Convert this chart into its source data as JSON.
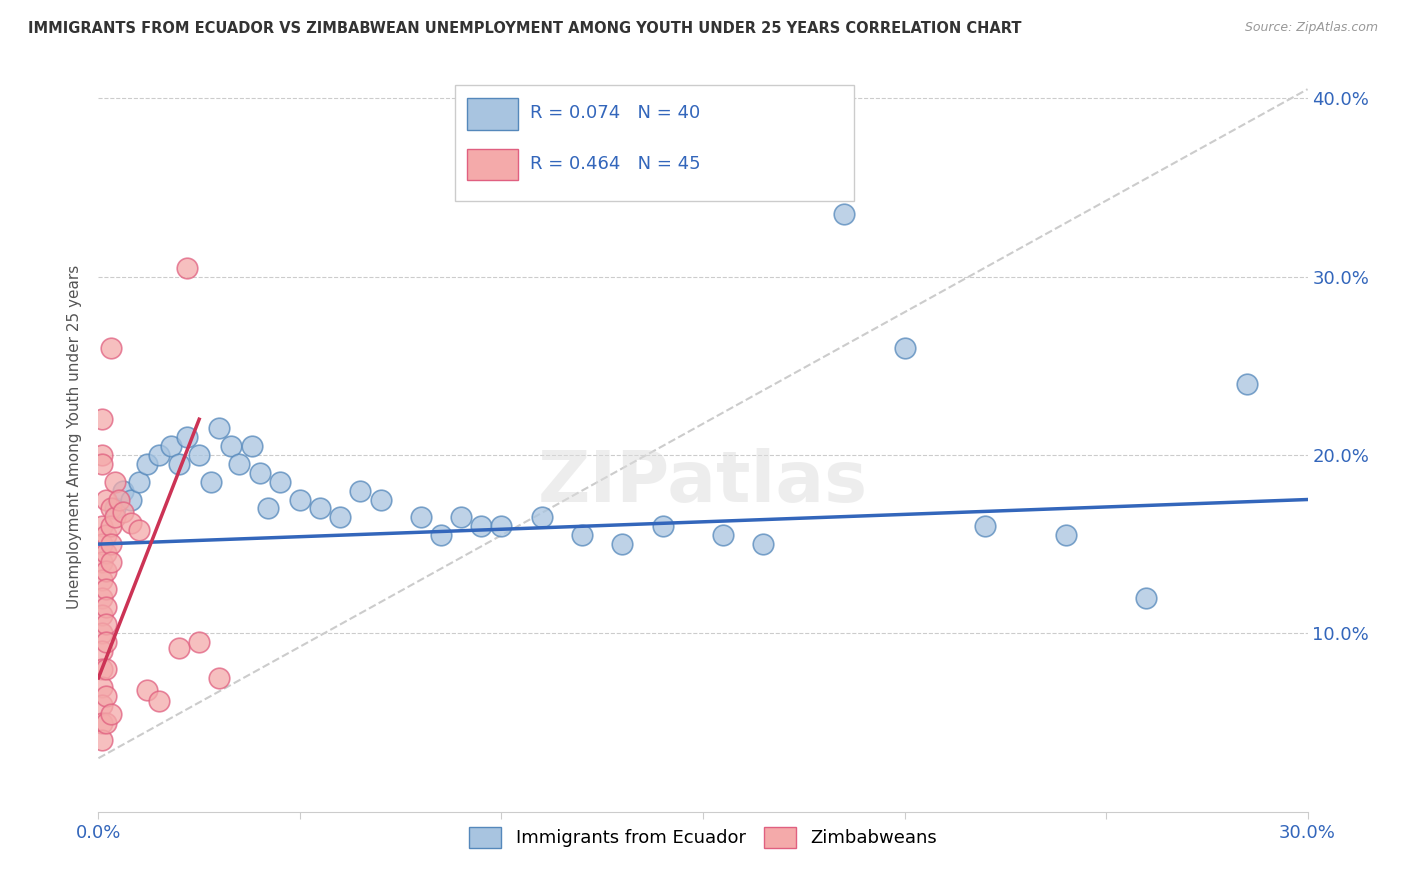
{
  "title": "IMMIGRANTS FROM ECUADOR VS ZIMBABWEAN UNEMPLOYMENT AMONG YOUTH UNDER 25 YEARS CORRELATION CHART",
  "source": "Source: ZipAtlas.com",
  "ylabel": "Unemployment Among Youth under 25 years",
  "xlim": [
    0.0,
    0.3
  ],
  "ylim": [
    0.0,
    0.42
  ],
  "legend1_r": "R = 0.074",
  "legend1_n": "N = 40",
  "legend2_r": "R = 0.464",
  "legend2_n": "N = 45",
  "blue_fill": "#A8C4E0",
  "blue_edge": "#5588BB",
  "pink_fill": "#F4AAAA",
  "pink_edge": "#E06080",
  "blue_line": "#3366BB",
  "pink_line": "#CC3355",
  "dash_line": "#CCCCCC",
  "ecuador_points": [
    [
      0.004,
      0.17
    ],
    [
      0.006,
      0.18
    ],
    [
      0.008,
      0.175
    ],
    [
      0.01,
      0.185
    ],
    [
      0.012,
      0.195
    ],
    [
      0.015,
      0.2
    ],
    [
      0.018,
      0.205
    ],
    [
      0.02,
      0.195
    ],
    [
      0.022,
      0.21
    ],
    [
      0.025,
      0.2
    ],
    [
      0.028,
      0.185
    ],
    [
      0.03,
      0.215
    ],
    [
      0.033,
      0.205
    ],
    [
      0.035,
      0.195
    ],
    [
      0.038,
      0.205
    ],
    [
      0.04,
      0.19
    ],
    [
      0.042,
      0.17
    ],
    [
      0.045,
      0.185
    ],
    [
      0.05,
      0.175
    ],
    [
      0.055,
      0.17
    ],
    [
      0.06,
      0.165
    ],
    [
      0.065,
      0.18
    ],
    [
      0.07,
      0.175
    ],
    [
      0.08,
      0.165
    ],
    [
      0.085,
      0.155
    ],
    [
      0.09,
      0.165
    ],
    [
      0.095,
      0.16
    ],
    [
      0.1,
      0.16
    ],
    [
      0.11,
      0.165
    ],
    [
      0.12,
      0.155
    ],
    [
      0.13,
      0.15
    ],
    [
      0.14,
      0.16
    ],
    [
      0.155,
      0.155
    ],
    [
      0.165,
      0.15
    ],
    [
      0.185,
      0.335
    ],
    [
      0.2,
      0.26
    ],
    [
      0.22,
      0.16
    ],
    [
      0.24,
      0.155
    ],
    [
      0.26,
      0.12
    ],
    [
      0.285,
      0.24
    ]
  ],
  "zimbabwe_points": [
    [
      0.001,
      0.22
    ],
    [
      0.001,
      0.2
    ],
    [
      0.001,
      0.195
    ],
    [
      0.001,
      0.16
    ],
    [
      0.001,
      0.15
    ],
    [
      0.001,
      0.14
    ],
    [
      0.001,
      0.13
    ],
    [
      0.001,
      0.12
    ],
    [
      0.001,
      0.11
    ],
    [
      0.001,
      0.1
    ],
    [
      0.001,
      0.09
    ],
    [
      0.001,
      0.08
    ],
    [
      0.001,
      0.07
    ],
    [
      0.001,
      0.06
    ],
    [
      0.001,
      0.05
    ],
    [
      0.001,
      0.04
    ],
    [
      0.002,
      0.175
    ],
    [
      0.002,
      0.155
    ],
    [
      0.002,
      0.145
    ],
    [
      0.002,
      0.135
    ],
    [
      0.002,
      0.125
    ],
    [
      0.002,
      0.115
    ],
    [
      0.002,
      0.105
    ],
    [
      0.002,
      0.095
    ],
    [
      0.002,
      0.08
    ],
    [
      0.002,
      0.065
    ],
    [
      0.002,
      0.05
    ],
    [
      0.003,
      0.26
    ],
    [
      0.003,
      0.17
    ],
    [
      0.003,
      0.16
    ],
    [
      0.003,
      0.15
    ],
    [
      0.003,
      0.14
    ],
    [
      0.003,
      0.055
    ],
    [
      0.004,
      0.185
    ],
    [
      0.004,
      0.165
    ],
    [
      0.005,
      0.175
    ],
    [
      0.006,
      0.168
    ],
    [
      0.008,
      0.162
    ],
    [
      0.01,
      0.158
    ],
    [
      0.012,
      0.068
    ],
    [
      0.015,
      0.062
    ],
    [
      0.02,
      0.092
    ],
    [
      0.022,
      0.305
    ],
    [
      0.025,
      0.095
    ],
    [
      0.03,
      0.075
    ]
  ],
  "blue_trend": [
    0.0,
    0.3,
    0.15,
    0.175
  ],
  "pink_trend": [
    0.0,
    0.025,
    0.075,
    0.22
  ],
  "dash_trend": [
    0.0,
    0.3,
    0.03,
    0.405
  ]
}
